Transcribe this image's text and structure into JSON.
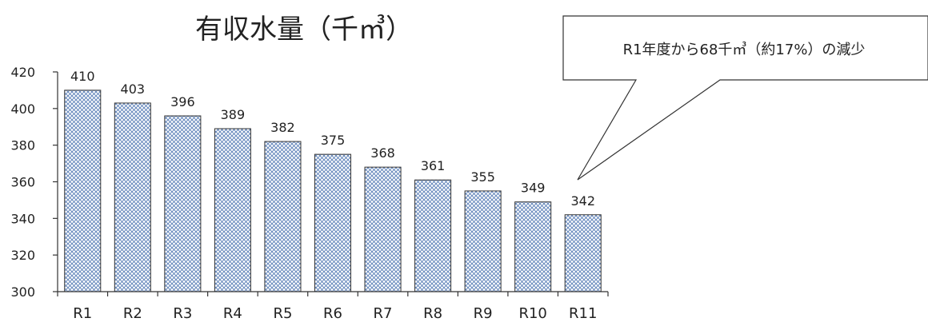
{
  "chart_data": {
    "type": "bar",
    "title": "有収水量（千㎥）",
    "xlabel": "",
    "ylabel": "",
    "categories": [
      "R1",
      "R2",
      "R3",
      "R4",
      "R5",
      "R6",
      "R7",
      "R8",
      "R9",
      "R10",
      "R11"
    ],
    "values": [
      410,
      403,
      396,
      389,
      382,
      375,
      368,
      361,
      355,
      349,
      342
    ],
    "data_labels": [
      "410",
      "403",
      "396",
      "389",
      "382",
      "375",
      "368",
      "361",
      "355",
      "349",
      "342"
    ],
    "ylim": [
      300,
      420
    ],
    "yticks": [
      300,
      320,
      340,
      360,
      380,
      400,
      420
    ],
    "grid": false,
    "legend": "none",
    "bar_fill": "crosshatch",
    "colors": {
      "bar_hatch": "#5b7fb8",
      "bar_bg": "#ffffff",
      "bar_border": "#333333",
      "axis": "#333333"
    },
    "annotation": "R1年度から68千㎥（約17%）の減少"
  }
}
